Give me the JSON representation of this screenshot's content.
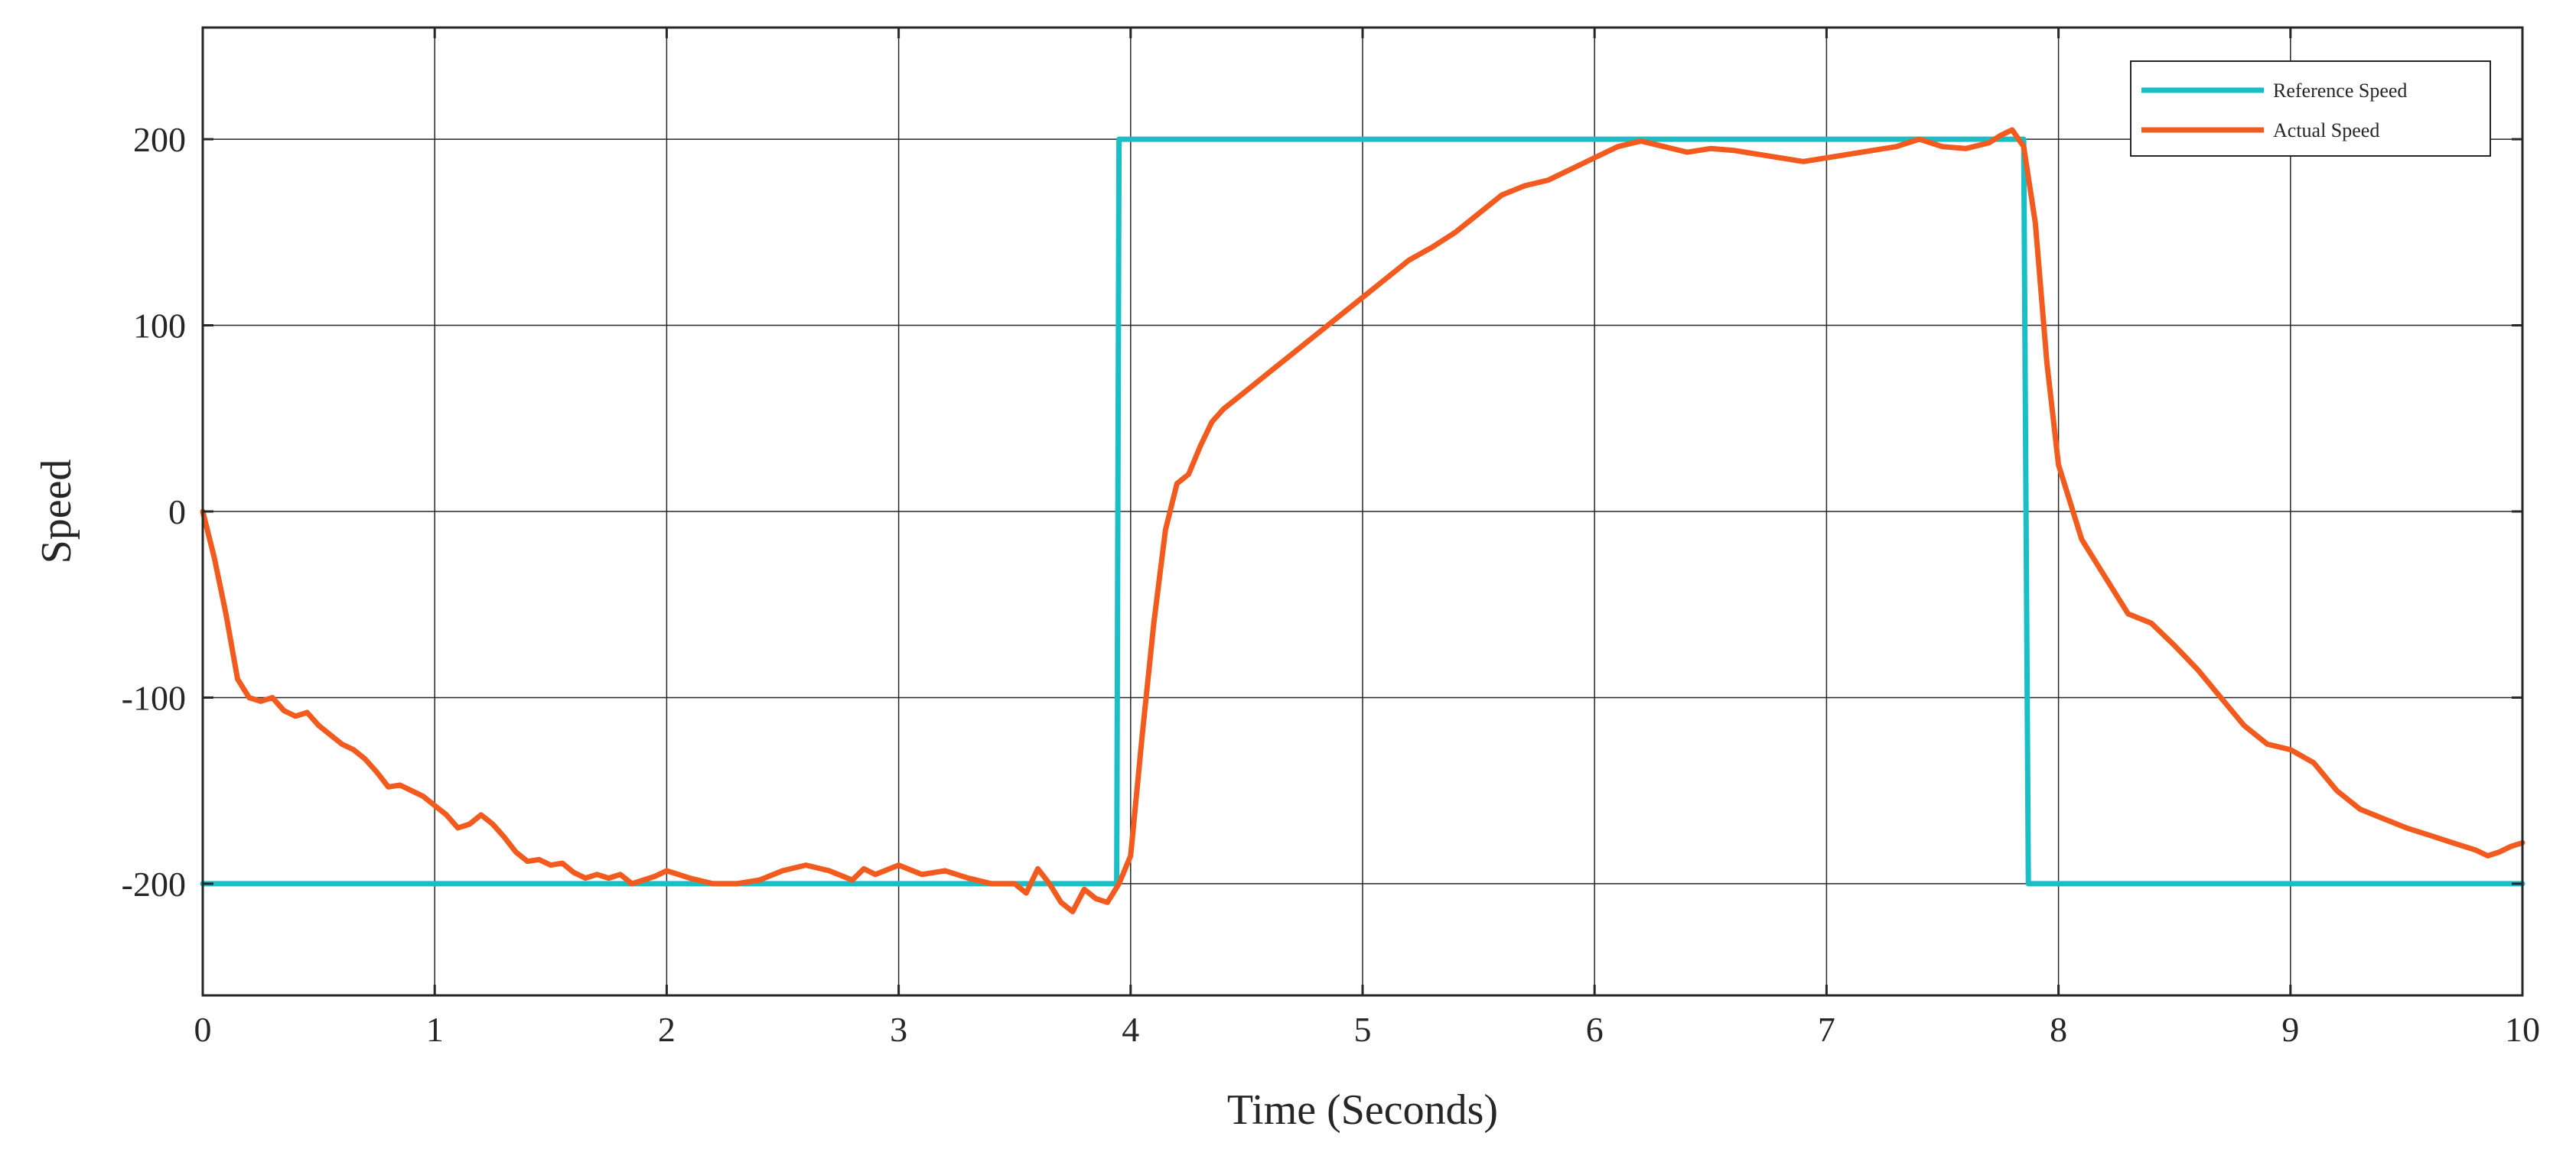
{
  "chart_data": {
    "type": "line",
    "title": "",
    "xlabel": "Time (Seconds)",
    "ylabel": "Speed",
    "xlim": [
      0,
      10
    ],
    "ylim": [
      -260,
      260
    ],
    "xticks": [
      0,
      1,
      2,
      3,
      4,
      5,
      6,
      7,
      8,
      9,
      10
    ],
    "yticks": [
      -200,
      -100,
      0,
      100,
      200
    ],
    "grid": true,
    "legend_position": "top-right",
    "series": [
      {
        "name": "Reference Speed",
        "color": "#1ABFC6",
        "x": [
          0,
          3.94,
          3.95,
          7.85,
          7.87,
          10
        ],
        "y": [
          -200,
          -200,
          200,
          200,
          -200,
          -200
        ]
      },
      {
        "name": "Actual Speed",
        "color": "#F25A1E",
        "x": [
          0,
          0.05,
          0.1,
          0.15,
          0.2,
          0.25,
          0.3,
          0.35,
          0.4,
          0.45,
          0.5,
          0.55,
          0.6,
          0.65,
          0.7,
          0.75,
          0.8,
          0.85,
          0.9,
          0.95,
          1.0,
          1.05,
          1.1,
          1.15,
          1.2,
          1.25,
          1.3,
          1.35,
          1.4,
          1.45,
          1.5,
          1.55,
          1.6,
          1.65,
          1.7,
          1.75,
          1.8,
          1.85,
          1.9,
          1.95,
          2.0,
          2.1,
          2.2,
          2.3,
          2.4,
          2.5,
          2.6,
          2.7,
          2.8,
          2.85,
          2.9,
          3.0,
          3.1,
          3.2,
          3.3,
          3.4,
          3.5,
          3.55,
          3.6,
          3.65,
          3.7,
          3.75,
          3.8,
          3.85,
          3.9,
          3.95,
          4.0,
          4.05,
          4.1,
          4.15,
          4.2,
          4.25,
          4.3,
          4.35,
          4.4,
          4.5,
          4.6,
          4.7,
          4.8,
          4.9,
          5.0,
          5.1,
          5.2,
          5.3,
          5.4,
          5.5,
          5.6,
          5.7,
          5.8,
          5.9,
          6.0,
          6.1,
          6.2,
          6.3,
          6.4,
          6.5,
          6.6,
          6.7,
          6.8,
          6.9,
          7.0,
          7.1,
          7.2,
          7.3,
          7.4,
          7.5,
          7.6,
          7.7,
          7.75,
          7.8,
          7.85,
          7.9,
          7.95,
          8.0,
          8.05,
          8.1,
          8.2,
          8.3,
          8.4,
          8.5,
          8.6,
          8.7,
          8.8,
          8.9,
          9.0,
          9.1,
          9.2,
          9.3,
          9.4,
          9.5,
          9.6,
          9.7,
          9.8,
          9.85,
          9.9,
          9.95,
          10.0
        ],
        "y": [
          0,
          -25,
          -55,
          -90,
          -100,
          -102,
          -100,
          -107,
          -110,
          -108,
          -115,
          -120,
          -125,
          -128,
          -133,
          -140,
          -148,
          -147,
          -150,
          -153,
          -158,
          -163,
          -170,
          -168,
          -163,
          -168,
          -175,
          -183,
          -188,
          -187,
          -190,
          -189,
          -194,
          -197,
          -195,
          -197,
          -195,
          -200,
          -198,
          -196,
          -193,
          -197,
          -200,
          -200,
          -198,
          -193,
          -190,
          -193,
          -198,
          -192,
          -195,
          -190,
          -195,
          -193,
          -197,
          -200,
          -200,
          -205,
          -192,
          -200,
          -210,
          -215,
          -203,
          -208,
          -210,
          -200,
          -185,
          -120,
          -60,
          -10,
          15,
          20,
          35,
          48,
          55,
          65,
          75,
          85,
          95,
          105,
          115,
          125,
          135,
          142,
          150,
          160,
          170,
          175,
          178,
          184,
          190,
          196,
          199,
          196,
          193,
          195,
          194,
          192,
          190,
          188,
          190,
          192,
          194,
          196,
          200,
          196,
          195,
          198,
          202,
          205,
          196,
          155,
          80,
          25,
          5,
          -15,
          -35,
          -55,
          -60,
          -72,
          -85,
          -100,
          -115,
          -125,
          -128,
          -135,
          -150,
          -160,
          -165,
          -170,
          -174,
          -178,
          -182,
          -185,
          -183,
          -180,
          -178
        ]
      }
    ]
  }
}
